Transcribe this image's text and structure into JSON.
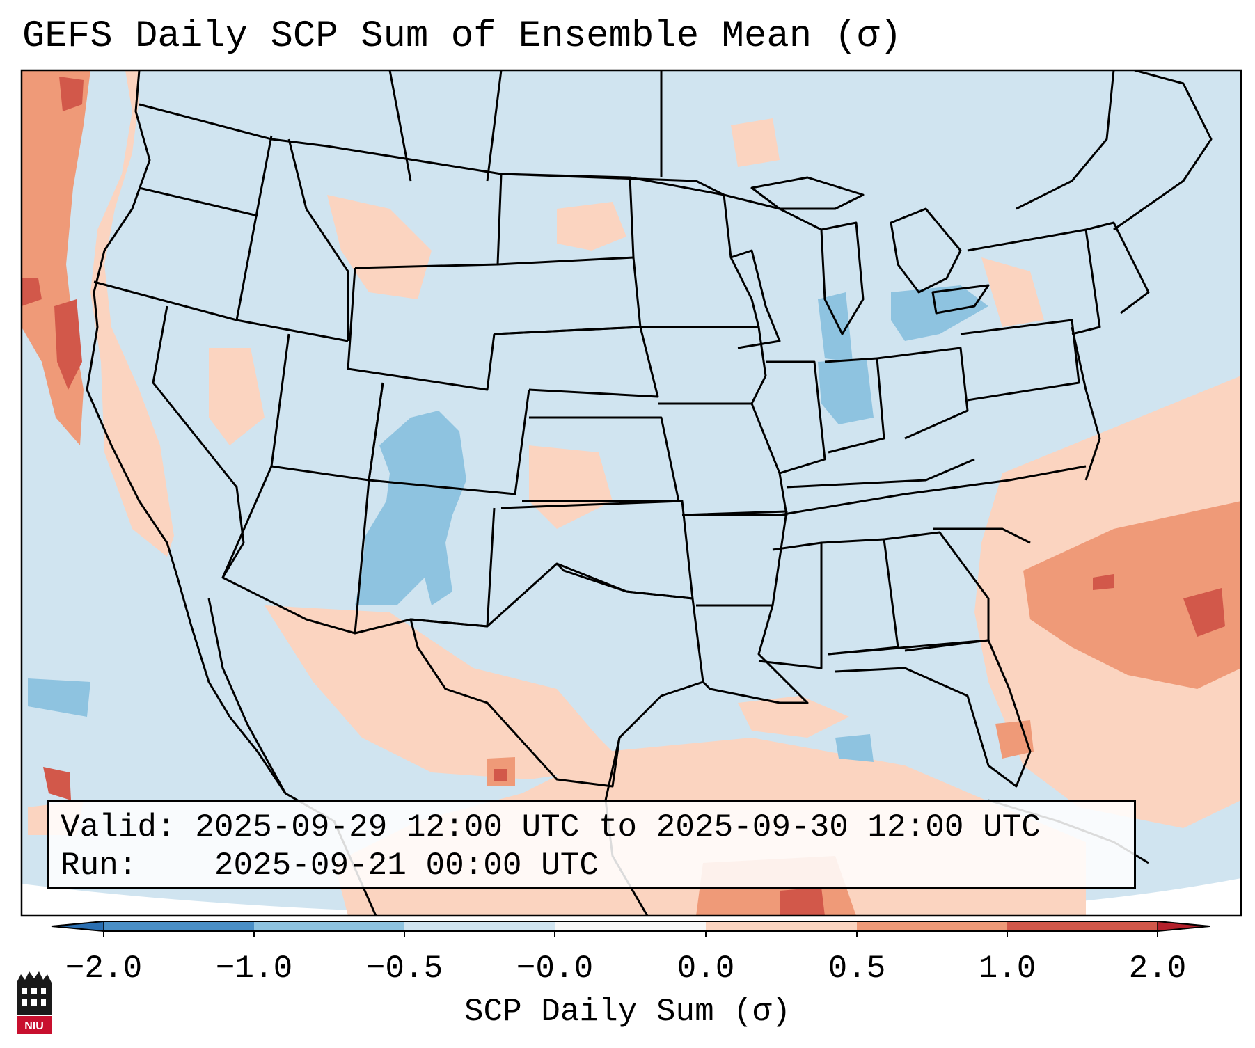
{
  "title": "GEFS Daily SCP Sum of Ensemble Mean (σ)",
  "info": {
    "valid_label": "Valid:",
    "valid_value": "2025-09-29 12:00 UTC to 2025-09-30 12:00 UTC",
    "run_label": "Run:",
    "run_value": "2025-09-21 00:00 UTC"
  },
  "colorbar": {
    "ticks": [
      "−2.0",
      "−1.0",
      "−0.5",
      "−0.0",
      "0.0",
      "0.5",
      "1.0",
      "2.0"
    ],
    "label": "SCP Daily Sum (σ)",
    "colors": [
      "#4a8fc6",
      "#8ec3e0",
      "#d0e4f0",
      "#f7f7f7",
      "#fbd4c0",
      "#ef9a78",
      "#d2584a"
    ],
    "extend_low_color": "#2a6fb2",
    "extend_high_color": "#b3202b"
  },
  "map": {
    "background_color": "#d0e4f0",
    "region": "Continental United States, northern Mexico, Gulf of Mexico, western Atlantic"
  },
  "logo": {
    "text": "NIU",
    "color": "#c8102e"
  }
}
